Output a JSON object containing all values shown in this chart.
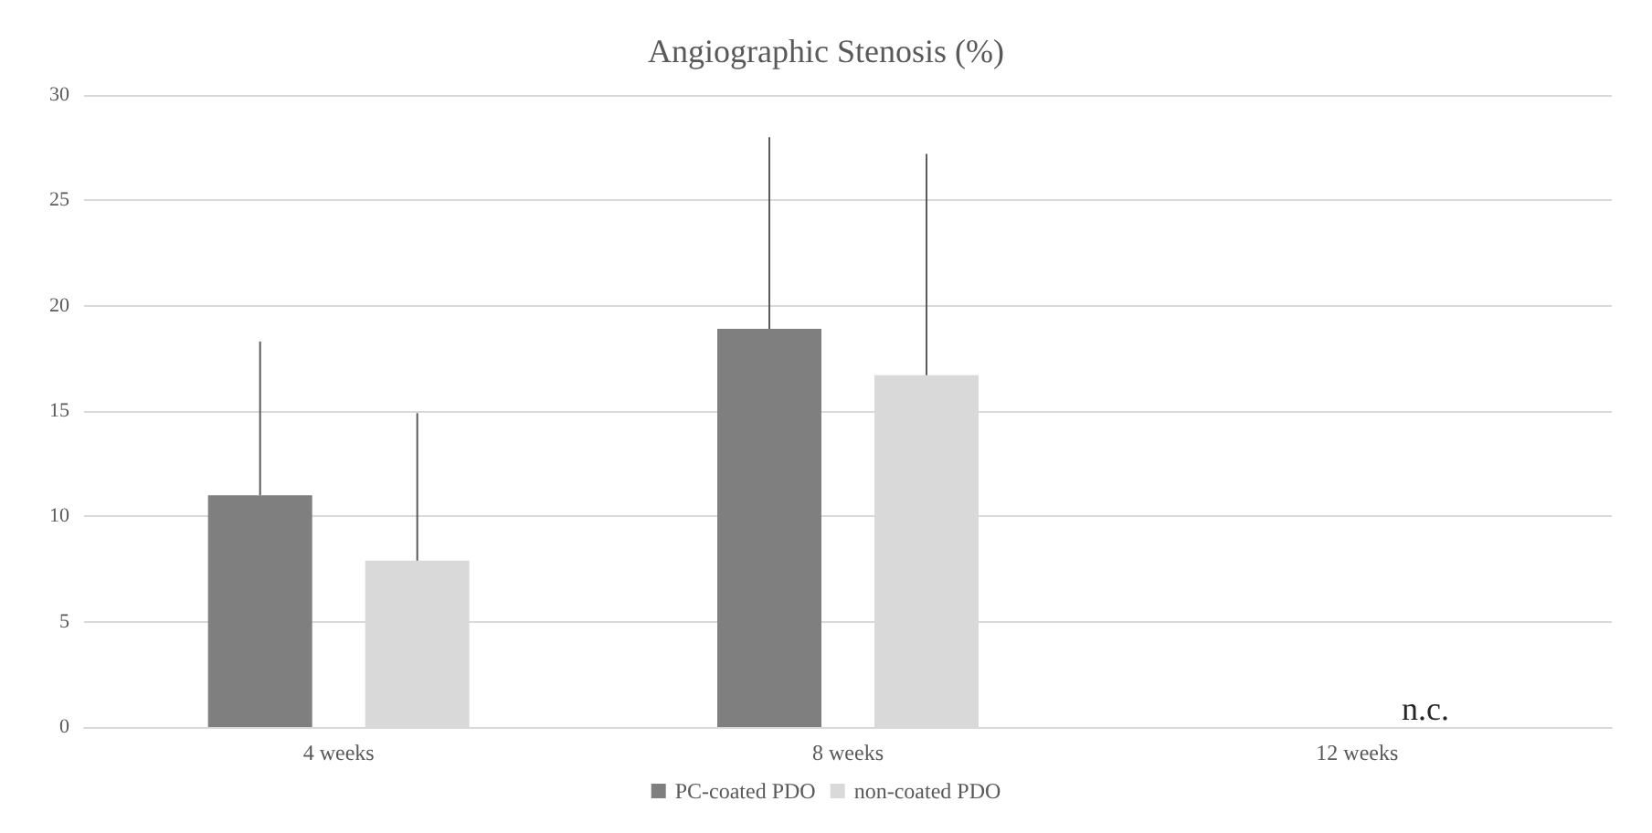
{
  "chart_data": {
    "type": "bar",
    "title": "Angiographic Stenosis (%)",
    "categories": [
      "4 weeks",
      "8 weeks",
      "12 weeks"
    ],
    "series": [
      {
        "name": "PC-coated PDO",
        "color": "#7f7f7f",
        "values": [
          11.0,
          18.9,
          null
        ],
        "errors": [
          [
            11.0,
            18.3
          ],
          [
            18.9,
            28.0
          ],
          null
        ]
      },
      {
        "name": "non-coated PDO",
        "color": "#d9d9d9",
        "values": [
          7.9,
          16.7,
          null
        ],
        "errors": [
          [
            7.9,
            14.9
          ],
          [
            16.7,
            27.2
          ],
          null
        ]
      }
    ],
    "ylim": [
      0,
      30
    ],
    "yticks": [
      0,
      5,
      10,
      15,
      20,
      25,
      30
    ],
    "grid": "y",
    "legend": "bottom",
    "annotations": [
      "n.c."
    ]
  }
}
